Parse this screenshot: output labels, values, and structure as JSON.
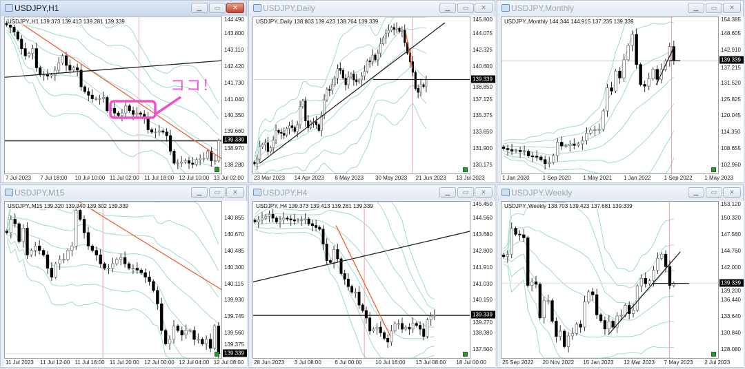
{
  "current_price": "139.339",
  "colors": {
    "band": "#9fd8d2",
    "trend_orange": "#f06030",
    "trend_black": "#222222",
    "vline": "#f5a0a0",
    "annotation": "#f050d0"
  },
  "windows": [
    {
      "id": "h1",
      "title": "USDJPY,H1",
      "active": true,
      "header": "USDJPY.,H1  139.373 139.413 139.281 139.339",
      "price_ticks": [
        "144.490",
        "143.800",
        "143.110",
        "142.420",
        "141.730",
        "141.040",
        "140.350",
        "139.660",
        "138.970",
        "138.280"
      ],
      "time_labels": [
        "7 Jul 2023",
        "7 Jul 18:00",
        "10 Jul 10:00",
        "11 Jul 02:00",
        "11 Jul 18:00",
        "12 Jul 10:00",
        "13 Jul 02:00"
      ],
      "annotation": "ココ！",
      "closes": [
        144.2,
        144.1,
        143.9,
        143.6,
        143.2,
        142.9,
        143.0,
        143.2,
        142.4,
        142.1,
        142.1,
        142.05,
        142.1,
        142.3,
        142.6,
        142.9,
        142.5,
        142.3,
        142.4,
        142.3,
        141.6,
        141.4,
        141.25,
        141.1,
        141.1,
        141.1,
        141.15,
        140.6,
        140.7,
        140.5,
        140.4,
        140.5,
        140.8,
        140.6,
        140.45,
        140.5,
        140.45,
        140.3,
        139.8,
        139.7,
        139.7,
        139.75,
        139.7,
        139.55,
        138.9,
        138.4,
        138.4,
        138.45,
        138.5,
        138.4,
        138.35,
        138.55,
        138.6,
        138.6,
        138.9,
        138.5,
        138.5,
        139.34
      ]
    },
    {
      "id": "daily",
      "title": "USDJPY,Daily",
      "active": false,
      "header": "USDJPY.,Daily  138.803 139.423 138.764 139.339",
      "price_ticks": [
        "145.800",
        "144.075",
        "142.325",
        "140.600",
        "138.850",
        "137.125",
        "135.375",
        "133.650",
        "131.900",
        "130.175"
      ],
      "time_labels": [
        "23 Mar 2023",
        "14 Apr 2023",
        "8 May 2023",
        "30 May 2023",
        "21 Jun 2023",
        "13 Jul 2023"
      ],
      "closes": [
        130.5,
        131.0,
        132.3,
        132.5,
        132.7,
        131.8,
        132.2,
        133.0,
        134.0,
        133.8,
        133.7,
        133.5,
        134.2,
        134.5,
        134.3,
        133.9,
        134.6,
        136.5,
        137.1,
        135.0,
        134.3,
        134.9,
        134.9,
        134.6,
        134.0,
        135.6,
        137.2,
        138.3,
        138.2,
        138.8,
        139.5,
        140.5,
        140.3,
        139.5,
        138.8,
        139.6,
        139.9,
        139.3,
        139.1,
        139.3,
        139.7,
        140.2,
        141.3,
        141.2,
        141.9,
        141.4,
        142.1,
        143.1,
        143.7,
        144.2,
        144.5,
        144.8,
        144.6,
        144.7,
        144.4,
        144.5,
        143.2,
        142.1,
        141.2,
        140.1,
        138.4,
        138.0,
        138.8,
        138.6,
        139.34
      ]
    },
    {
      "id": "monthly",
      "title": "USDJPY,Monthly",
      "active": false,
      "header": "USDJPY.,Monthly  144.344 144.915 137.235 139.339",
      "price_ticks": [
        "154.385",
        "148.605",
        "142.910",
        "137.215",
        "131.520",
        "125.825",
        "120.045",
        "114.350",
        "108.655",
        "102.960"
      ],
      "time_labels": [
        "1 Jan 2020",
        "1 Sep 2020",
        "1 May 2021",
        "1 Jan 2022",
        "1 Sep 2022",
        "1 May 2023"
      ],
      "closes": [
        108.5,
        108.1,
        107.6,
        107.8,
        107.4,
        107.5,
        105.9,
        105.8,
        105.5,
        104.6,
        103.2,
        103.6,
        106.0,
        110.7,
        109.4,
        109.5,
        110.0,
        109.6,
        110.1,
        111.3,
        113.9,
        115.0,
        115.1,
        115.2,
        121.7,
        129.8,
        128.7,
        135.7,
        133.3,
        139.7,
        144.7,
        148.6,
        138.0,
        131.0,
        130.4,
        133.0,
        136.3,
        132.8,
        136.3,
        139.3,
        144.3,
        139.34
      ]
    },
    {
      "id": "m15",
      "title": "USDJPY,M15",
      "active": false,
      "header": "USDJPY.,M15  139.320 139.340 139.302 139.339",
      "price_ticks": [
        "140.855",
        "140.670",
        "140.485",
        "140.300",
        "140.115",
        "139.930",
        "139.745",
        "139.560",
        "139.375"
      ],
      "time_labels": [
        "11 Jul 2023",
        "11 Jul 12:00",
        "11 Jul 16:00",
        "11 Jul 20:00",
        "12 Jul 00:00",
        "12 Jul 04:00",
        "12 Jul 08:00"
      ],
      "closes": [
        140.7,
        140.85,
        140.8,
        140.6,
        140.75,
        140.45,
        140.5,
        140.55,
        140.5,
        140.45,
        140.3,
        140.2,
        140.35,
        140.4,
        140.4,
        140.5,
        140.55,
        140.95,
        140.85,
        140.7,
        140.55,
        140.5,
        140.45,
        140.35,
        140.3,
        140.3,
        140.35,
        140.4,
        140.42,
        140.35,
        140.3,
        140.3,
        140.28,
        140.25,
        140.2,
        140.15,
        140.05,
        139.9,
        139.6,
        139.45,
        139.5,
        139.65,
        139.6,
        139.55,
        139.6,
        139.6,
        139.5,
        139.5,
        139.45,
        139.5,
        139.4,
        139.65,
        139.34
      ]
    },
    {
      "id": "h4",
      "title": "USDJPY,H4",
      "active": false,
      "header": "USDJPY.,H4  139.373 139.413 139.281 139.339",
      "price_ticks": [
        "145.450",
        "144.560",
        "143.680",
        "142.800",
        "141.910",
        "141.030",
        "140.150",
        "139.270",
        "138.380",
        "137.500"
      ],
      "time_labels": [
        "28 Jun 2023",
        "3 Jul 08:00",
        "6 Jul 00:00",
        "10 Jul 16:00",
        "13 Jul 08:00",
        "18 Jul 00:00"
      ],
      "closes": [
        144.4,
        144.5,
        144.6,
        144.7,
        144.8,
        144.6,
        144.4,
        144.5,
        144.6,
        144.55,
        144.5,
        144.45,
        144.5,
        144.5,
        144.55,
        144.3,
        144.2,
        144.1,
        144.0,
        143.2,
        142.3,
        142.2,
        142.9,
        142.4,
        141.6,
        141.3,
        140.9,
        140.6,
        140.6,
        139.9,
        139.6,
        139.2,
        138.5,
        138.6,
        138.7,
        138.4,
        138.1,
        137.9,
        138.5,
        138.9,
        138.9,
        138.6,
        138.7,
        138.6,
        138.9,
        138.8,
        138.6,
        138.2,
        139.1,
        139.3,
        139.34
      ]
    },
    {
      "id": "weekly",
      "title": "USDJPY,Weekly",
      "active": false,
      "header": "USDJPY.,Weekly  138.703 139.423 137.681 139.339",
      "price_ticks": [
        "153.120",
        "150.320",
        "147.560",
        "144.760",
        "142.000",
        "139.200",
        "136.440",
        "133.640",
        "130.840",
        "128.080"
      ],
      "time_labels": [
        "25 Sep 2022",
        "20 Nov 2022",
        "15 Jan 2023",
        "12 Mar 2023",
        "7 May 2023",
        "2 Jul 2023"
      ],
      "closes": [
        143.9,
        144.3,
        148.7,
        147.7,
        147.6,
        147.1,
        139.0,
        139.6,
        139.2,
        133.5,
        136.4,
        136.4,
        132.9,
        130.3,
        131.2,
        128.6,
        130.4,
        130.8,
        132.4,
        131.9,
        136.2,
        137.9,
        137.4,
        134.0,
        133.0,
        131.6,
        132.9,
        131.9,
        133.8,
        133.9,
        135.6,
        134.2,
        134.8,
        138.9,
        140.2,
        139.3,
        139.8,
        141.6,
        143.6,
        144.3,
        142.2,
        139.0,
        139.34
      ]
    }
  ]
}
